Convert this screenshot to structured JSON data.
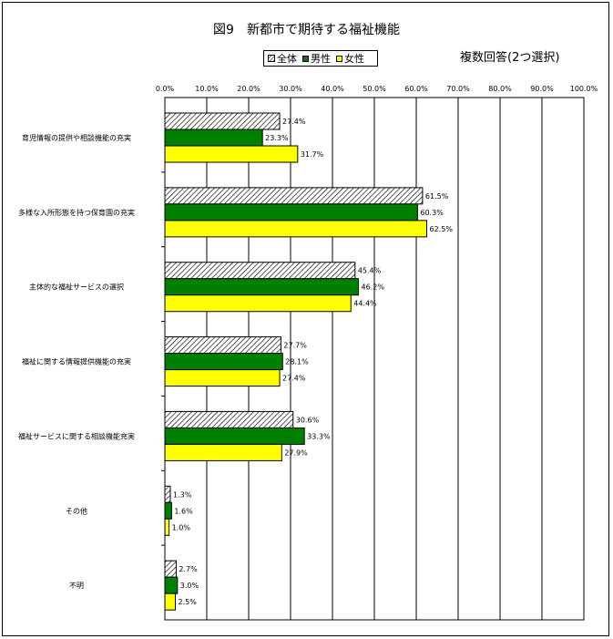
{
  "chart_data": {
    "type": "bar",
    "orientation": "horizontal",
    "title": "図9　新都市で期待する福祉機能",
    "note": "複数回答(2つ選択)",
    "categories": [
      "育児情報の提供や相談機能の充実",
      "多様な入所形態を持つ保育園の充実",
      "主体的な福祉サービスの選択",
      "福祉に関する情報提供機能の充実",
      "福祉サービスに関する相談機能充実",
      "その他",
      "不明"
    ],
    "series": [
      {
        "name": "全体",
        "color": "#ffffff",
        "pattern": "hatch",
        "values": [
          27.4,
          61.5,
          45.4,
          27.7,
          30.6,
          1.3,
          2.7
        ],
        "labels": [
          "27.4%",
          "61.5%",
          "45.4%",
          "27.7%",
          "30.6%",
          "1.3%",
          "2.7%"
        ]
      },
      {
        "name": "男性",
        "color": "#008000",
        "pattern": "solid",
        "values": [
          23.3,
          60.3,
          46.2,
          28.1,
          33.3,
          1.6,
          3.0
        ],
        "labels": [
          "23.3%",
          "60.3%",
          "46.2%",
          "28.1%",
          "33.3%",
          "1.6%",
          "3.0%"
        ]
      },
      {
        "name": "女性",
        "color": "#ffff00",
        "pattern": "solid",
        "values": [
          31.7,
          62.5,
          44.4,
          27.4,
          27.9,
          1.0,
          2.5
        ],
        "labels": [
          "31.7%",
          "62.5%",
          "44.4%",
          "27.4%",
          "27.9%",
          "1.0%",
          "2.5%"
        ]
      }
    ],
    "xlim": [
      0,
      100
    ],
    "ticks": [
      0,
      10,
      20,
      30,
      40,
      50,
      60,
      70,
      80,
      90,
      100
    ],
    "tick_labels": [
      "0.0%",
      "10.0%",
      "20.0%",
      "30.0%",
      "40.0%",
      "50.0%",
      "60.0%",
      "70.0%",
      "80.0%",
      "90.0%",
      "100.0%"
    ],
    "grid": true,
    "legend_position": "top"
  }
}
